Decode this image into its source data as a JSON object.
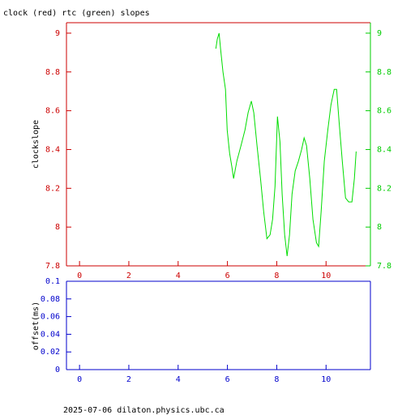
{
  "chart_data": [
    {
      "type": "line",
      "title": "clock (red) rtc (green) slopes",
      "ylabel": "clockslope",
      "xlim": [
        -0.53,
        11.8
      ],
      "xticks": [
        0,
        2,
        4,
        6,
        8,
        10
      ],
      "ylim": [
        7.8,
        9.054
      ],
      "yticks": [
        7.8,
        8,
        8.2,
        8.4,
        8.6,
        8.8,
        9
      ],
      "y2lim": [
        7.8,
        9.054
      ],
      "y2ticks": [
        7.8,
        8,
        8.2,
        8.4,
        8.6,
        8.8,
        9
      ],
      "tick_color": "#cc0000",
      "y2_tick_color": "#00cc00",
      "series": [
        {
          "name": "rtc",
          "color": "#00dd00",
          "axis": "y",
          "x": [
            5.53,
            5.59,
            5.66,
            5.72,
            5.82,
            5.92,
            5.99,
            6.09,
            6.18,
            6.25,
            6.38,
            6.55,
            6.71,
            6.84,
            6.97,
            7.07,
            7.2,
            7.34,
            7.47,
            7.6,
            7.73,
            7.83,
            7.93,
            8.03,
            8.13,
            8.22,
            8.32,
            8.42,
            8.52,
            8.62,
            8.75,
            8.88,
            9.01,
            9.11,
            9.21,
            9.34,
            9.47,
            9.61,
            9.7,
            9.8,
            9.93,
            10.07,
            10.2,
            10.33,
            10.43,
            10.53,
            10.66,
            10.79,
            10.92,
            11.05,
            11.15,
            11.22
          ],
          "values": [
            8.92,
            8.97,
            9.0,
            8.92,
            8.8,
            8.71,
            8.5,
            8.38,
            8.31,
            8.25,
            8.34,
            8.42,
            8.5,
            8.59,
            8.65,
            8.59,
            8.42,
            8.25,
            8.08,
            7.94,
            7.96,
            8.04,
            8.21,
            8.57,
            8.44,
            8.17,
            7.96,
            7.85,
            7.96,
            8.17,
            8.29,
            8.34,
            8.4,
            8.46,
            8.42,
            8.25,
            8.04,
            7.92,
            7.9,
            8.08,
            8.34,
            8.5,
            8.63,
            8.71,
            8.71,
            8.54,
            8.34,
            8.15,
            8.13,
            8.13,
            8.25,
            8.39
          ]
        }
      ]
    },
    {
      "type": "line",
      "ylabel": "offset(ms)",
      "xlim": [
        -0.53,
        11.8
      ],
      "xticks": [
        0,
        2,
        4,
        6,
        8,
        10
      ],
      "ylim": [
        0,
        0.1
      ],
      "yticks": [
        0,
        0.02,
        0.04,
        0.06,
        0.08,
        0.1
      ],
      "tick_color": "#0000cc",
      "series": []
    }
  ],
  "footer": "2025-07-06 dilaton.physics.ubc.ca"
}
